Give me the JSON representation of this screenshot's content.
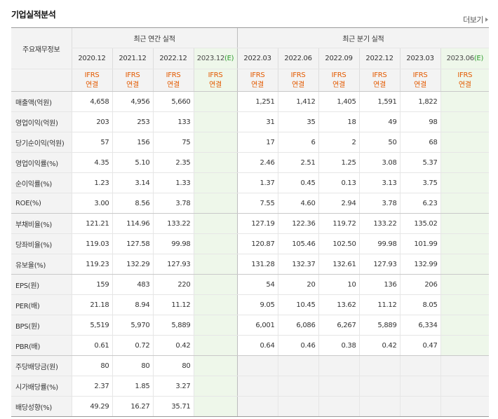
{
  "title": "기업실적분석",
  "more_label": "더보기",
  "header": {
    "row_label": "주요재무정보",
    "annual_label": "최근 연간 실적",
    "quarter_label": "최근 분기 실적",
    "annual_periods": [
      "2020.12",
      "2021.12",
      "2022.12",
      "2023.12"
    ],
    "annual_estimate_suffix": "(E)",
    "quarter_periods": [
      "2022.03",
      "2022.06",
      "2022.09",
      "2022.12",
      "2023.03",
      "2023.06"
    ],
    "quarter_estimate_suffix": "(E)",
    "basis_top": "IFRS",
    "basis_bottom": "연결"
  },
  "rows": [
    {
      "label": "매출액(억원)",
      "annual": [
        "4,658",
        "4,956",
        "5,660",
        ""
      ],
      "quarter": [
        "1,251",
        "1,412",
        "1,405",
        "1,591",
        "1,822",
        ""
      ]
    },
    {
      "label": "영업이익(억원)",
      "annual": [
        "203",
        "253",
        "133",
        ""
      ],
      "quarter": [
        "31",
        "35",
        "18",
        "49",
        "98",
        ""
      ]
    },
    {
      "label": "당기순이익(억원)",
      "annual": [
        "57",
        "156",
        "75",
        ""
      ],
      "quarter": [
        "17",
        "6",
        "2",
        "50",
        "68",
        ""
      ]
    },
    {
      "label": "영업이익률(%)",
      "annual": [
        "4.35",
        "5.10",
        "2.35",
        ""
      ],
      "quarter": [
        "2.46",
        "2.51",
        "1.25",
        "3.08",
        "5.37",
        ""
      ]
    },
    {
      "label": "순이익률(%)",
      "annual": [
        "1.23",
        "3.14",
        "1.33",
        ""
      ],
      "quarter": [
        "1.37",
        "0.45",
        "0.13",
        "3.13",
        "3.75",
        ""
      ]
    },
    {
      "label": "ROE(%)",
      "annual": [
        "3.00",
        "8.56",
        "3.78",
        ""
      ],
      "quarter": [
        "7.55",
        "4.60",
        "2.94",
        "3.78",
        "6.23",
        ""
      ]
    },
    {
      "label": "부채비율(%)",
      "annual": [
        "121.21",
        "114.96",
        "133.22",
        ""
      ],
      "quarter": [
        "127.19",
        "122.36",
        "119.72",
        "133.22",
        "135.02",
        ""
      ]
    },
    {
      "label": "당좌비율(%)",
      "annual": [
        "119.03",
        "127.58",
        "99.98",
        ""
      ],
      "quarter": [
        "120.87",
        "105.46",
        "102.50",
        "99.98",
        "101.99",
        ""
      ]
    },
    {
      "label": "유보율(%)",
      "annual": [
        "119.23",
        "132.29",
        "127.93",
        ""
      ],
      "quarter": [
        "131.28",
        "132.37",
        "132.61",
        "127.93",
        "132.99",
        ""
      ]
    },
    {
      "label": "EPS(원)",
      "annual": [
        "159",
        "483",
        "220",
        ""
      ],
      "quarter": [
        "54",
        "20",
        "10",
        "136",
        "206",
        ""
      ]
    },
    {
      "label": "PER(배)",
      "annual": [
        "21.18",
        "8.94",
        "11.12",
        ""
      ],
      "quarter": [
        "9.05",
        "10.45",
        "13.62",
        "11.12",
        "8.05",
        ""
      ]
    },
    {
      "label": "BPS(원)",
      "annual": [
        "5,519",
        "5,970",
        "5,889",
        ""
      ],
      "quarter": [
        "6,001",
        "6,086",
        "6,267",
        "5,889",
        "6,334",
        ""
      ]
    },
    {
      "label": "PBR(배)",
      "annual": [
        "0.61",
        "0.72",
        "0.42",
        ""
      ],
      "quarter": [
        "0.64",
        "0.46",
        "0.38",
        "0.42",
        "0.47",
        ""
      ]
    },
    {
      "label": "주당배당금(원)",
      "annual": [
        "80",
        "80",
        "80",
        ""
      ],
      "quarter": [
        "",
        "",
        "",
        "",
        "",
        ""
      ]
    },
    {
      "label": "시가배당률(%)",
      "annual": [
        "2.37",
        "1.85",
        "3.27",
        ""
      ],
      "quarter": [
        "",
        "",
        "",
        "",
        "",
        ""
      ]
    },
    {
      "label": "배당성향(%)",
      "annual": [
        "49.29",
        "16.27",
        "35.71",
        ""
      ],
      "quarter": [
        "",
        "",
        "",
        "",
        "",
        ""
      ]
    }
  ],
  "colors": {
    "basis_text": "#e35a00",
    "estimate_bg": "#eef7ea",
    "estimate_mark": "#2e9c2e"
  }
}
